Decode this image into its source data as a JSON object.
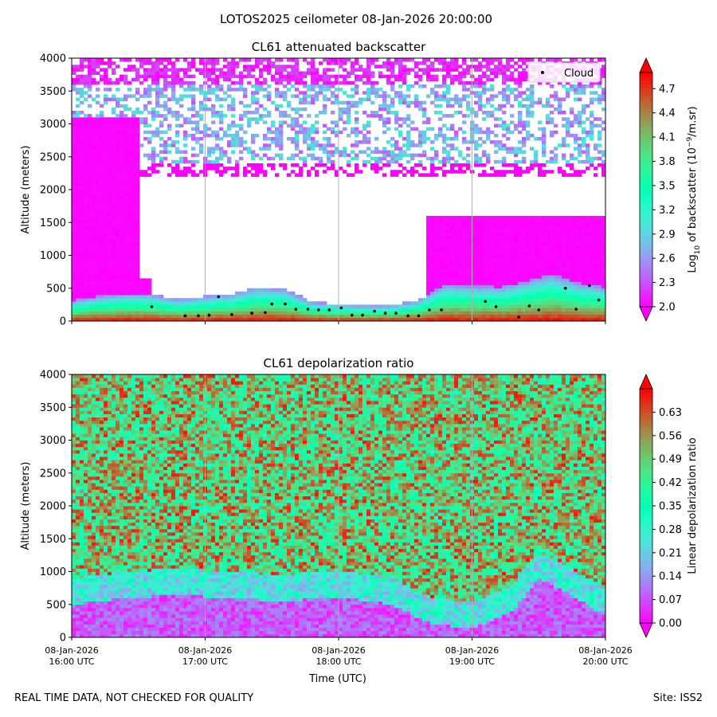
{
  "figure": {
    "title": "LOTOS2025 ceilometer 08-Jan-2026 20:00:00",
    "footer_left": "REAL TIME DATA, NOT CHECKED FOR QUALITY",
    "footer_right": "Site: ISS2"
  },
  "chart_data": [
    {
      "type": "heatmap",
      "title": "CL61 attenuated backscatter",
      "xlabel": "",
      "ylabel": "Altitude (meters)",
      "ylim": [
        0,
        4000
      ],
      "yticks": [
        0,
        500,
        1000,
        1500,
        2000,
        2500,
        3000,
        3500,
        4000
      ],
      "xlim": [
        "08-Jan-2026 16:00 UTC",
        "08-Jan-2026 20:00 UTC"
      ],
      "xticks": [
        {
          "line1": "08-Jan-2026",
          "line2": "16:00 UTC"
        },
        {
          "line1": "08-Jan-2026",
          "line2": "17:00 UTC"
        },
        {
          "line1": "08-Jan-2026",
          "line2": "18:00 UTC"
        },
        {
          "line1": "08-Jan-2026",
          "line2": "19:00 UTC"
        },
        {
          "line1": "08-Jan-2026",
          "line2": "20:00 UTC"
        }
      ],
      "show_xticklabels": false,
      "grid": "vertical at hourly ticks",
      "colormap": "rainbow",
      "colorbar": {
        "label_prefix": "Log",
        "label_sub": "10",
        "label_mid": " of backscatter (10",
        "label_sup": "−9",
        "label_suffix": "/m.sr)",
        "range": [
          2.0,
          4.9
        ],
        "ticks": [
          "2.0",
          "2.3",
          "2.6",
          "2.9",
          "3.2",
          "3.5",
          "3.8",
          "4.1",
          "4.4",
          "4.7"
        ],
        "extend": "both"
      },
      "legend": {
        "position": "top-right",
        "label": "Cloud"
      },
      "boundary_layer": {
        "times_hours": [
          16.0,
          16.2,
          16.4,
          16.6,
          16.8,
          17.0,
          17.2,
          17.4,
          17.6,
          17.8,
          18.0,
          18.2,
          18.4,
          18.6,
          18.8,
          19.0,
          19.2,
          19.4,
          19.6,
          19.8,
          20.0
        ],
        "top_m": [
          320,
          380,
          420,
          410,
          330,
          380,
          420,
          520,
          480,
          300,
          260,
          240,
          250,
          320,
          560,
          540,
          520,
          600,
          720,
          580,
          520
        ]
      },
      "cloud_base": {
        "times_hours": [
          16.6,
          16.85,
          16.95,
          17.03,
          17.1,
          17.2,
          17.35,
          17.45,
          17.5,
          17.6,
          17.68,
          17.77,
          17.85,
          17.93,
          18.02,
          18.1,
          18.18,
          18.27,
          18.35,
          18.43,
          18.52,
          18.6,
          18.68,
          18.77,
          19.1,
          19.18,
          19.35,
          19.43,
          19.5,
          19.7,
          19.78,
          19.88,
          19.95
        ],
        "altitude_m": [
          220,
          80,
          80,
          90,
          370,
          100,
          120,
          130,
          260,
          260,
          180,
          180,
          170,
          170,
          200,
          90,
          90,
          150,
          120,
          120,
          80,
          80,
          170,
          170,
          300,
          220,
          60,
          230,
          170,
          500,
          180,
          540,
          320
        ]
      },
      "signal_top_m": [
        {
          "from_hour": 16.0,
          "to_hour": 16.52,
          "top_m": 3100
        },
        {
          "from_hour": 16.52,
          "to_hour": 16.6,
          "top_m": 640
        },
        {
          "from_hour": 16.6,
          "to_hour": 18.67,
          "top_m": 0
        },
        {
          "from_hour": 18.67,
          "to_hour": 20.0,
          "top_m": 1600
        }
      ]
    },
    {
      "type": "heatmap",
      "title": "CL61 depolarization ratio",
      "xlabel": "Time (UTC)",
      "ylabel": "Altitude (meters)",
      "ylim": [
        0,
        4000
      ],
      "yticks": [
        0,
        500,
        1000,
        1500,
        2000,
        2500,
        3000,
        3500,
        4000
      ],
      "xlim": [
        "08-Jan-2026 16:00 UTC",
        "08-Jan-2026 20:00 UTC"
      ],
      "xticks": [
        {
          "line1": "08-Jan-2026",
          "line2": "16:00 UTC"
        },
        {
          "line1": "08-Jan-2026",
          "line2": "17:00 UTC"
        },
        {
          "line1": "08-Jan-2026",
          "line2": "18:00 UTC"
        },
        {
          "line1": "08-Jan-2026",
          "line2": "19:00 UTC"
        },
        {
          "line1": "08-Jan-2026",
          "line2": "20:00 UTC"
        }
      ],
      "show_xticklabels": true,
      "grid": "vertical at hourly ticks",
      "colormap": "rainbow",
      "colorbar": {
        "label": "Linear depolarization ratio",
        "range": [
          0.0,
          0.7
        ],
        "ticks": [
          "0.00",
          "0.07",
          "0.14",
          "0.21",
          "0.28",
          "0.35",
          "0.42",
          "0.49",
          "0.56",
          "0.63"
        ],
        "extend": "both"
      },
      "low_depol_layer": {
        "times_hours": [
          16.0,
          16.4,
          16.8,
          17.2,
          17.6,
          18.0,
          18.4,
          18.7,
          19.0,
          19.3,
          19.5,
          19.7,
          19.9,
          20.0
        ],
        "top_m": [
          500,
          600,
          650,
          600,
          550,
          620,
          500,
          200,
          150,
          400,
          900,
          700,
          450,
          350
        ],
        "typical_ratio": 0.07
      },
      "aloft_ratio_range": [
        0.28,
        0.63
      ]
    }
  ]
}
